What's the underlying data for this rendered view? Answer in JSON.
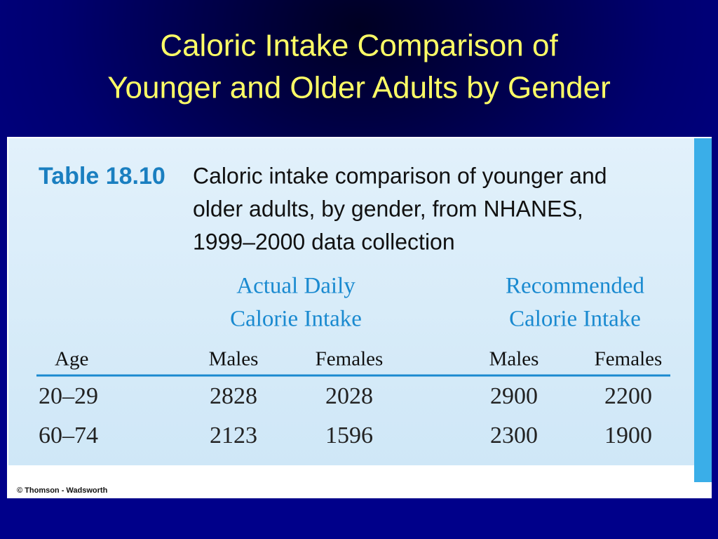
{
  "slide": {
    "title": [
      "Caloric Intake Comparison of",
      "Younger and Older Adults by Gender"
    ]
  },
  "table": {
    "label": "Table 18.10",
    "caption": [
      "Caloric intake comparison of younger and",
      "older adults, by gender, from NHANES,",
      "1999–2000 data collection"
    ],
    "groups": [
      [
        "Actual Daily",
        "Calorie Intake"
      ],
      [
        "Recommended",
        "Calorie Intake"
      ]
    ],
    "columns": [
      "Age",
      "Males",
      "Females",
      "Males",
      "Females"
    ],
    "rows": [
      [
        "20–29",
        2828,
        2028,
        2900,
        2200
      ],
      [
        "60–74",
        2123,
        1596,
        2300,
        1900
      ]
    ]
  },
  "credit": "© Thomson - Wadsworth"
}
